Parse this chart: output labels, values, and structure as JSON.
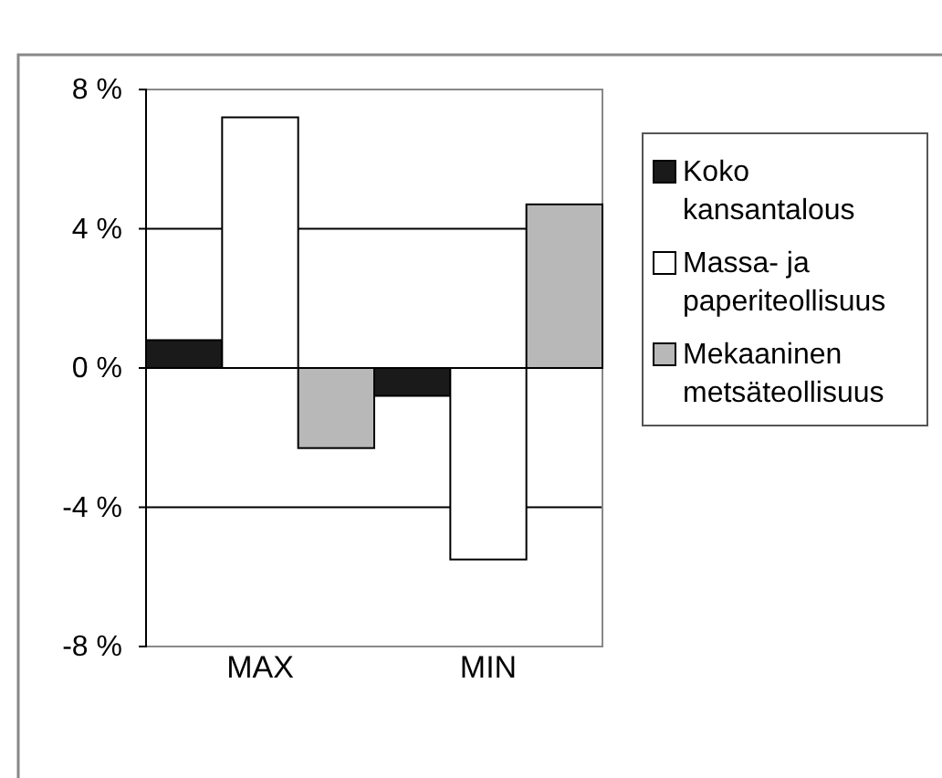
{
  "chart_data": {
    "type": "bar",
    "categories": [
      "MAX",
      "MIN"
    ],
    "series": [
      {
        "name": "Koko kansantalous",
        "color": "#1a1a1a",
        "values": [
          0.8,
          -0.8
        ]
      },
      {
        "name": "Massa- ja paperiteollisuus",
        "color": "#ffffff",
        "values": [
          7.2,
          -5.5
        ]
      },
      {
        "name": "Mekaaninen metsäteollisuus",
        "color": "#b8b8b8",
        "values": [
          -2.3,
          4.7
        ]
      }
    ],
    "ylim": [
      -8,
      8
    ],
    "yticks": [
      {
        "value": -8,
        "label": "-8 %"
      },
      {
        "value": -4,
        "label": "-4 %"
      },
      {
        "value": 0,
        "label": "0 %"
      },
      {
        "value": 4,
        "label": "4 %"
      },
      {
        "value": 8,
        "label": "8 %"
      }
    ],
    "grid": "y",
    "legend": "right"
  }
}
